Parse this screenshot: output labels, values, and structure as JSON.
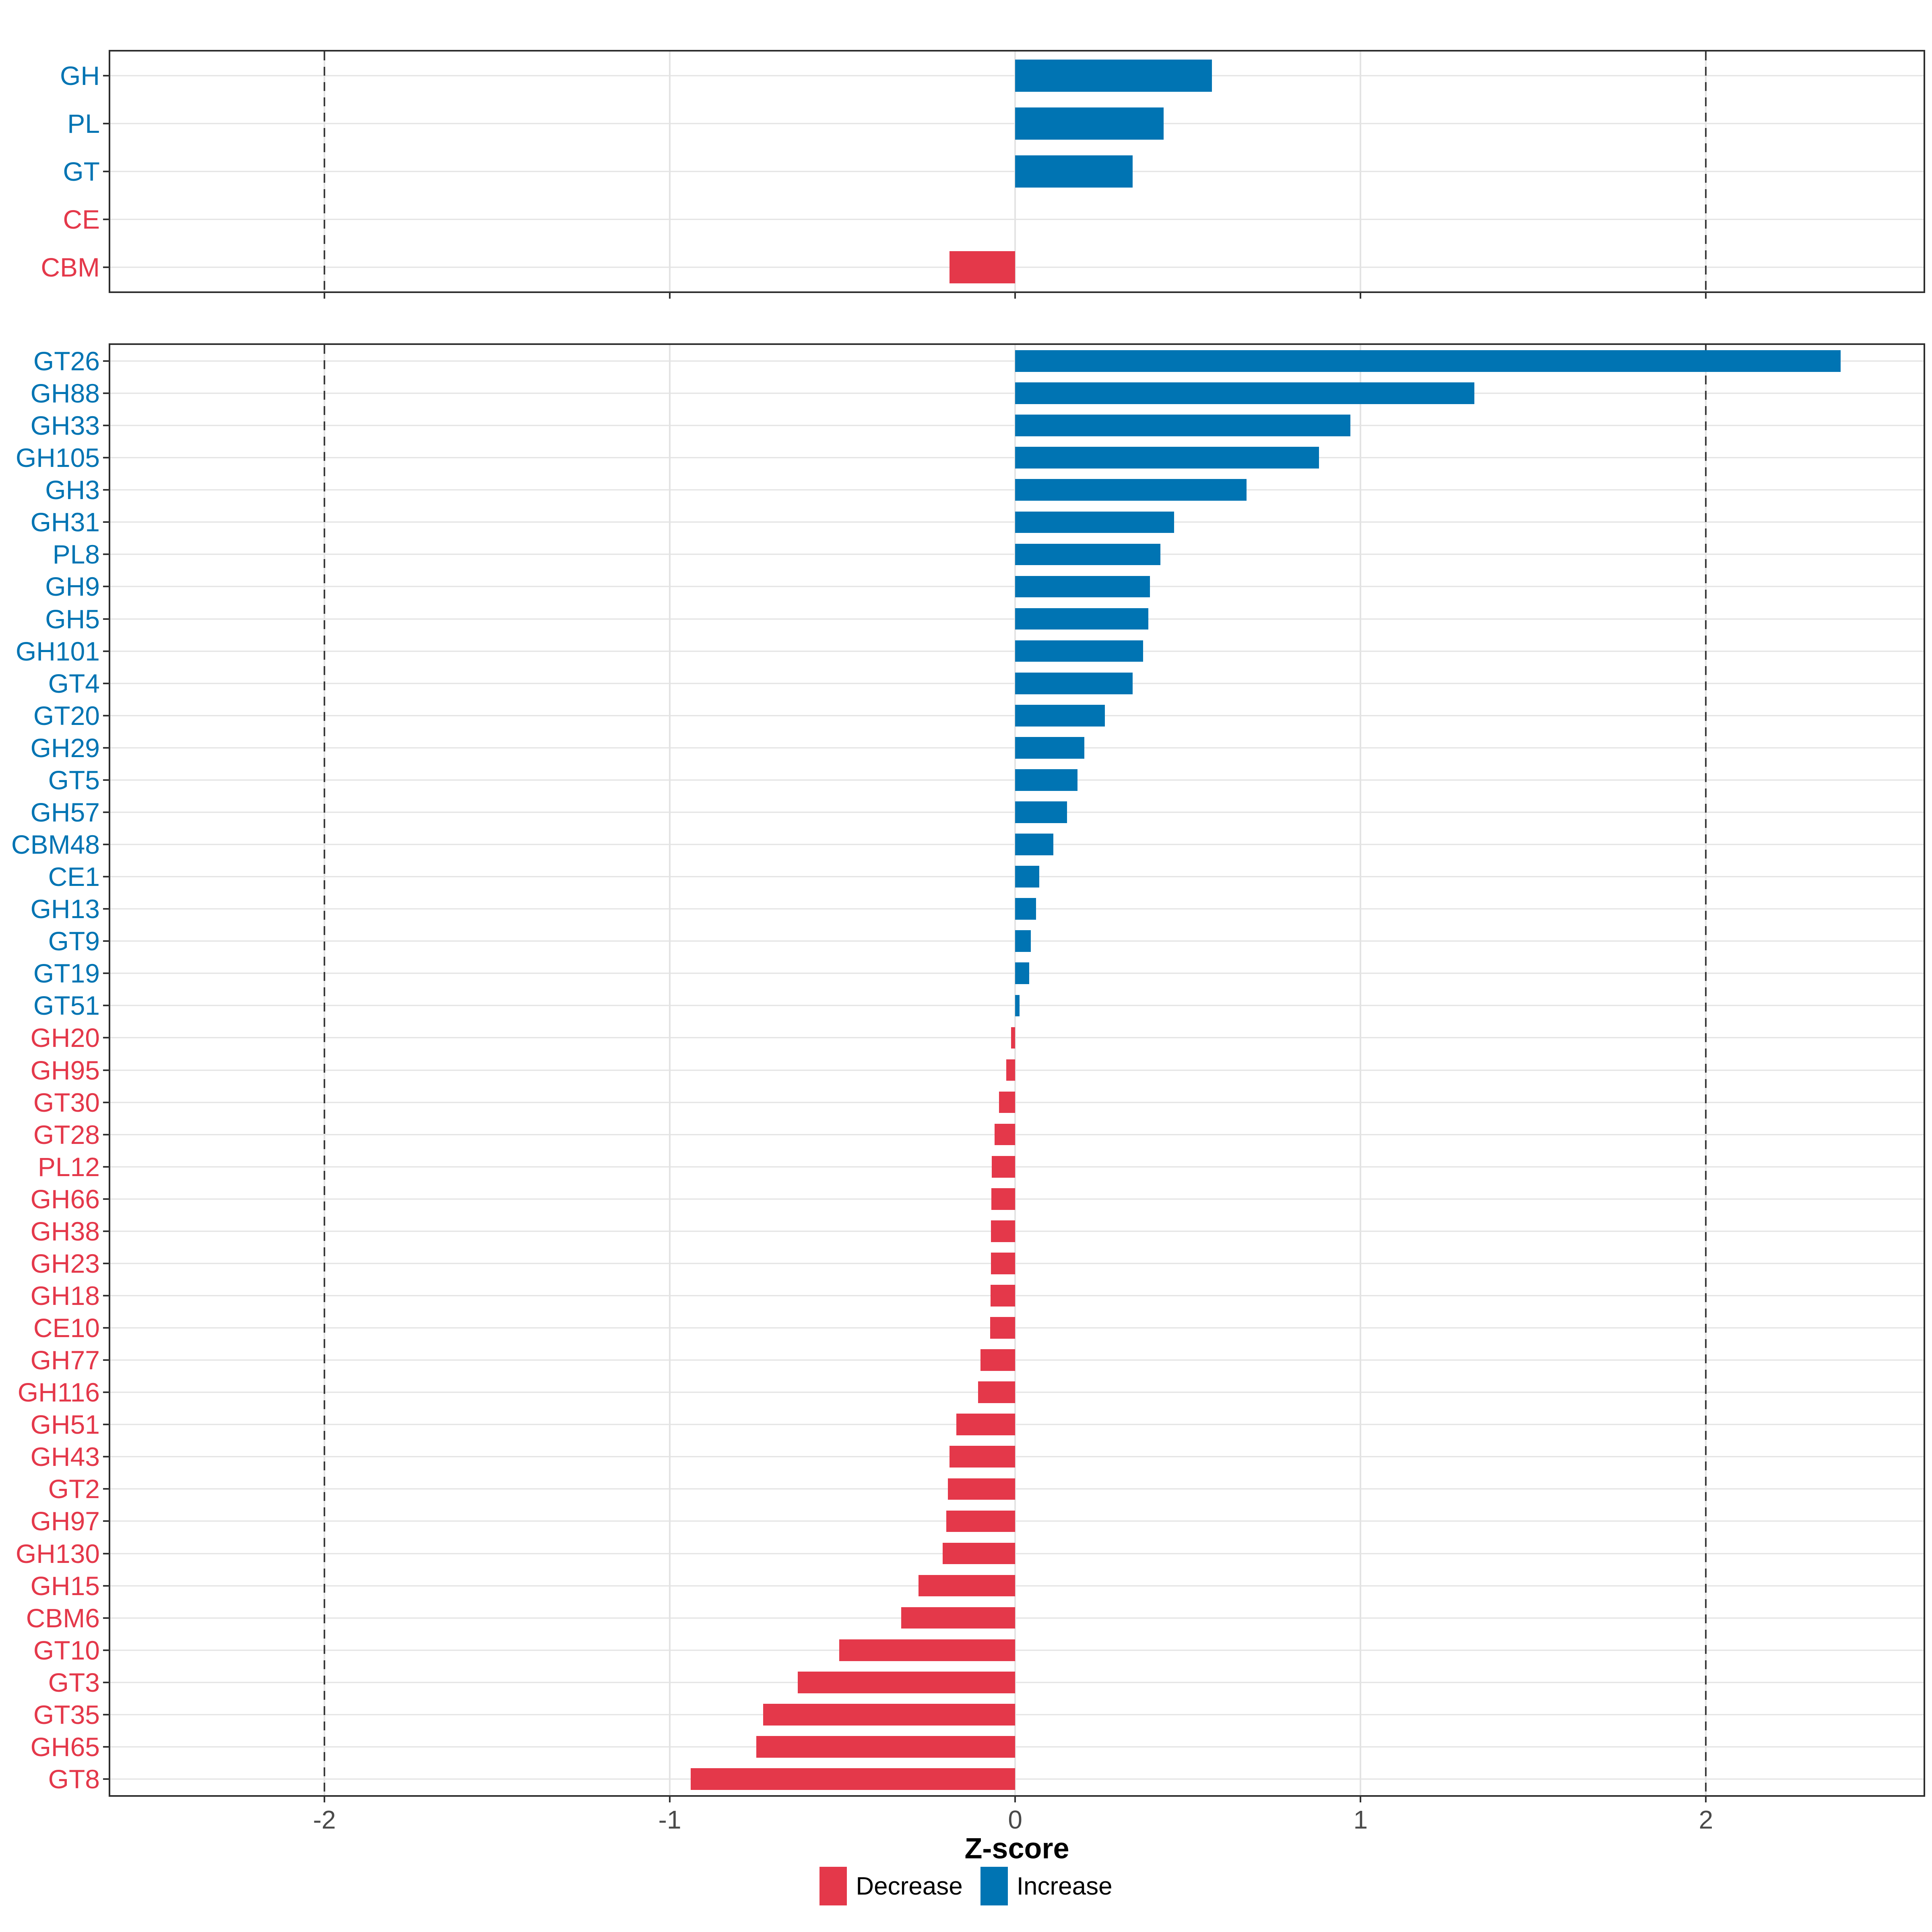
{
  "chart_data": [
    {
      "type": "bar",
      "orientation": "horizontal",
      "panel": "top",
      "title": "",
      "categories": [
        "GH",
        "PL",
        "GT",
        "CE",
        "CBM"
      ],
      "values": [
        0.57,
        0.43,
        0.34,
        0,
        -0.19
      ],
      "directions": [
        "increase",
        "increase",
        "increase",
        "decrease",
        "decrease"
      ],
      "xlim": [
        -2.62,
        2.63
      ],
      "xticks": [
        -2,
        -1,
        0,
        1,
        2
      ],
      "dashed_lines": [
        -2,
        2
      ],
      "grid": true,
      "legend_position": "none"
    },
    {
      "type": "bar",
      "orientation": "horizontal",
      "panel": "bottom",
      "title": "",
      "categories": [
        "GT26",
        "GH88",
        "GH33",
        "GH105",
        "GH3",
        "GH31",
        "PL8",
        "GH9",
        "GH5",
        "GH101",
        "GT4",
        "GT20",
        "GH29",
        "GT5",
        "GH57",
        "CBM48",
        "CE1",
        "GH13",
        "GT9",
        "GT19",
        "GT51",
        "GH20",
        "GH95",
        "GT30",
        "GT28",
        "PL12",
        "GH66",
        "GH38",
        "GH23",
        "GH18",
        "CE10",
        "GH77",
        "GH116",
        "GH51",
        "GH43",
        "GT2",
        "GH97",
        "GH130",
        "GH15",
        "CBM6",
        "GT10",
        "GT3",
        "GT35",
        "GH65",
        "GT8"
      ],
      "values": [
        2.39,
        1.33,
        0.97,
        0.88,
        0.67,
        0.46,
        0.42,
        0.39,
        0.385,
        0.37,
        0.34,
        0.26,
        0.2,
        0.18,
        0.15,
        0.11,
        0.07,
        0.06,
        0.045,
        0.04,
        0.012,
        -0.012,
        -0.026,
        -0.047,
        -0.06,
        -0.068,
        -0.069,
        -0.07,
        -0.07,
        -0.071,
        -0.072,
        -0.1,
        -0.108,
        -0.17,
        -0.19,
        -0.195,
        -0.2,
        -0.21,
        -0.28,
        -0.33,
        -0.51,
        -0.63,
        -0.73,
        -0.75,
        -0.94
      ],
      "directions": [
        "increase",
        "increase",
        "increase",
        "increase",
        "increase",
        "increase",
        "increase",
        "increase",
        "increase",
        "increase",
        "increase",
        "increase",
        "increase",
        "increase",
        "increase",
        "increase",
        "increase",
        "increase",
        "increase",
        "increase",
        "increase",
        "decrease",
        "decrease",
        "decrease",
        "decrease",
        "decrease",
        "decrease",
        "decrease",
        "decrease",
        "decrease",
        "decrease",
        "decrease",
        "decrease",
        "decrease",
        "decrease",
        "decrease",
        "decrease",
        "decrease",
        "decrease",
        "decrease",
        "decrease",
        "decrease",
        "decrease",
        "decrease",
        "decrease"
      ],
      "xlim": [
        -2.62,
        2.63
      ],
      "xticks": [
        -2,
        -1,
        0,
        1,
        2
      ],
      "dashed_lines": [
        -2,
        2
      ],
      "grid": true,
      "xlabel": "Z-score"
    }
  ],
  "axis": {
    "xlabel": "Z-score",
    "tick_labels": [
      "-2",
      "-1",
      "0",
      "1",
      "2"
    ]
  },
  "legend": {
    "items": [
      {
        "label": "Decrease",
        "color": "#e4384a"
      },
      {
        "label": "Increase",
        "color": "#0074b3"
      }
    ]
  },
  "colors": {
    "increase": "#0074b3",
    "decrease": "#e4384a",
    "gridline": "#e3e3e3",
    "dashed_line": "#3b3b3b",
    "panel_border": "#2d2d2d",
    "axis_text": "#4a4a4a"
  }
}
